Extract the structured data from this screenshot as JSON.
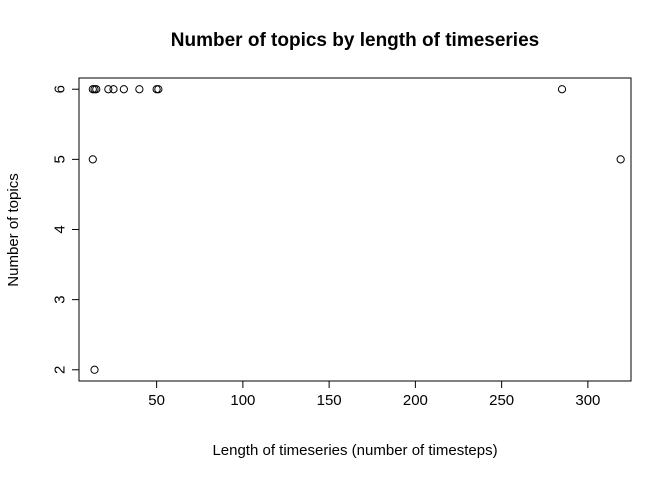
{
  "chart_data": {
    "type": "scatter",
    "title": "Number of topics by length of timeseries",
    "xlabel": "Length of timeseries (number of timesteps)",
    "ylabel": "Number of topics",
    "xlim": [
      5,
      325
    ],
    "ylim": [
      1.84,
      6.16
    ],
    "x_ticks": [
      50,
      100,
      150,
      200,
      250,
      300
    ],
    "y_ticks": [
      2,
      3,
      4,
      5,
      6
    ],
    "grid": false,
    "legend": "none",
    "marker": "open-circle",
    "colors": {
      "points": "#000000",
      "axes": "#000000",
      "background": "#ffffff"
    },
    "points": [
      {
        "x": 13,
        "y": 6
      },
      {
        "x": 14,
        "y": 6
      },
      {
        "x": 15,
        "y": 6
      },
      {
        "x": 22,
        "y": 6
      },
      {
        "x": 25,
        "y": 6
      },
      {
        "x": 31,
        "y": 6
      },
      {
        "x": 40,
        "y": 6
      },
      {
        "x": 50,
        "y": 6
      },
      {
        "x": 51,
        "y": 6
      },
      {
        "x": 285,
        "y": 6
      },
      {
        "x": 13,
        "y": 5
      },
      {
        "x": 319,
        "y": 5
      },
      {
        "x": 14,
        "y": 2
      }
    ]
  }
}
